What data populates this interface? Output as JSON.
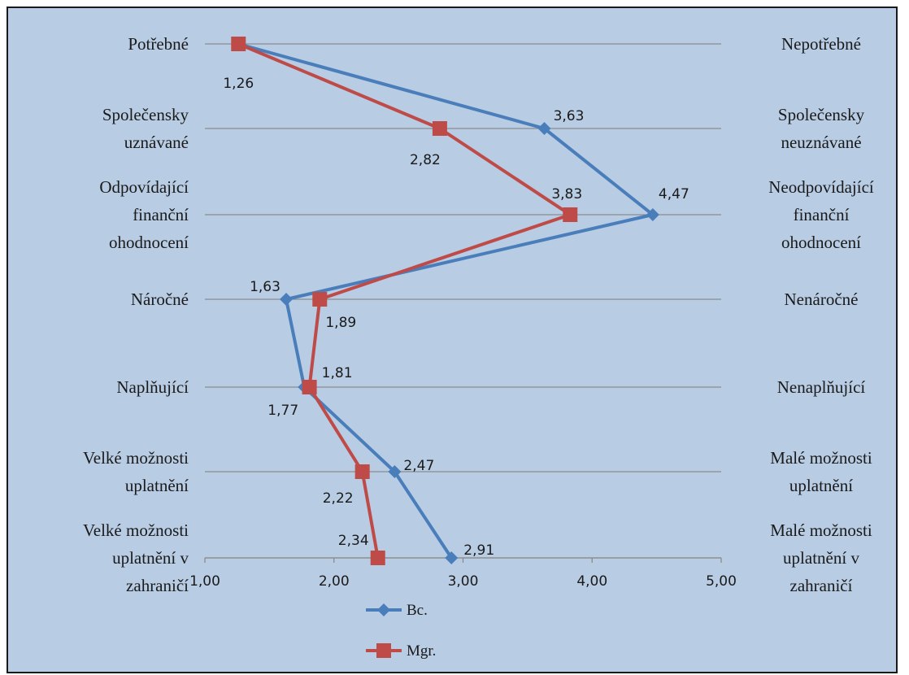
{
  "chart_data": {
    "type": "line",
    "orientation": "horizontal-profile",
    "categories_left": [
      [
        "Potřebné"
      ],
      [
        "Společensky",
        "uznávané"
      ],
      [
        "Odpovídající",
        "finanční",
        "ohodnocení"
      ],
      [
        "Náročné"
      ],
      [
        "Naplňující"
      ],
      [
        "Velké možnosti",
        "uplatnění"
      ],
      [
        "Velké možnosti",
        "uplatnění v",
        "zahraničí"
      ]
    ],
    "categories_right": [
      [
        "Nepotřebné"
      ],
      [
        "Společensky",
        "neuznávané"
      ],
      [
        "Neodpovídající",
        "finanční",
        "ohodnocení"
      ],
      [
        "Nenáročné"
      ],
      [
        "Nenaplňující"
      ],
      [
        "Malé možnosti",
        "uplatnění"
      ],
      [
        "Malé možnosti",
        "uplatnění v",
        "zahraničí"
      ]
    ],
    "xlim": [
      1,
      5
    ],
    "x_ticks": [
      "1,00",
      "2,00",
      "3,00",
      "4,00",
      "5,00"
    ],
    "grid": true,
    "legend_position": "bottom",
    "series": [
      {
        "name": "Bc.",
        "color": "#4a7ebb",
        "marker": "diamond",
        "values": [
          1.26,
          3.63,
          4.47,
          1.63,
          1.77,
          2.47,
          2.91
        ],
        "labels": [
          "",
          "3,63",
          "4,47",
          "1,63",
          "1,77",
          "2,47",
          "2,91"
        ]
      },
      {
        "name": "Mgr.",
        "color": "#be4b48",
        "marker": "square",
        "values": [
          1.26,
          2.82,
          3.83,
          1.89,
          1.81,
          2.22,
          2.34
        ],
        "labels": [
          "1,26",
          "2,82",
          "3,83",
          "1,89",
          "1,81",
          "2,22",
          "2,34"
        ]
      }
    ]
  }
}
